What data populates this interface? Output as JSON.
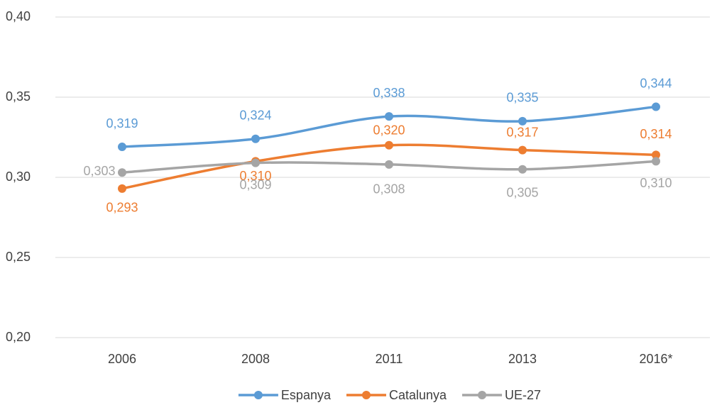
{
  "chart_data": {
    "type": "line",
    "categories": [
      "2006",
      "2008",
      "2011",
      "2013",
      "2016*"
    ],
    "series": [
      {
        "name": "Espanya",
        "color": "#5b9bd5",
        "values": [
          0.319,
          0.324,
          0.338,
          0.335,
          0.344
        ],
        "value_labels": [
          "0,319",
          "0,324",
          "0,338",
          "0,335",
          "0,344"
        ]
      },
      {
        "name": "Catalunya",
        "color": "#ed7d31",
        "values": [
          0.293,
          0.31,
          0.32,
          0.317,
          0.314
        ],
        "value_labels": [
          "0,293",
          "0,310",
          "0,320",
          "0,317",
          "0,314"
        ]
      },
      {
        "name": "UE-27",
        "color": "#a5a5a5",
        "values": [
          0.303,
          0.309,
          0.308,
          0.305,
          0.31
        ],
        "value_labels": [
          "0,303",
          "0,309",
          "0,308",
          "0,305",
          "0,310"
        ]
      }
    ],
    "ylim": [
      0.2,
      0.4
    ],
    "yticks": [
      {
        "value": 0.2,
        "label": "0,20"
      },
      {
        "value": 0.25,
        "label": "0,25"
      },
      {
        "value": 0.3,
        "label": "0,30"
      },
      {
        "value": 0.35,
        "label": "0,35"
      },
      {
        "value": 0.4,
        "label": "0,40"
      }
    ],
    "grid": true,
    "smooth": true,
    "legend": "bottom"
  }
}
